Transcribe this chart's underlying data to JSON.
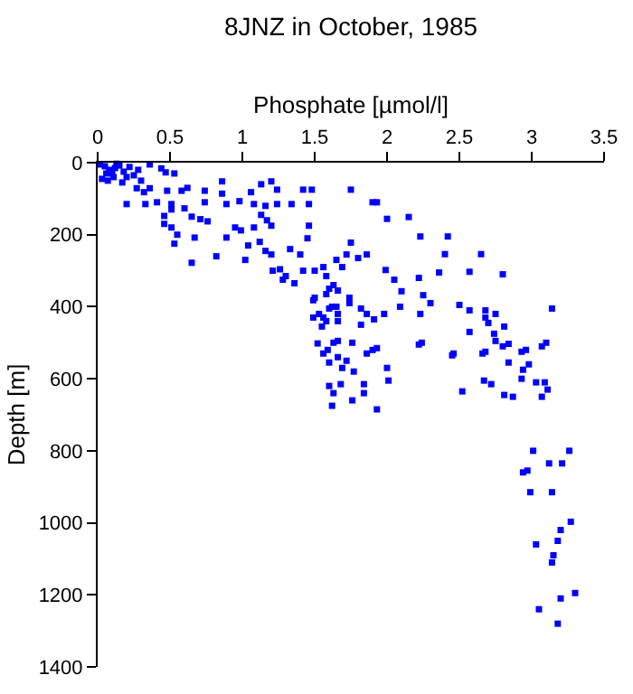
{
  "chart_data": {
    "type": "scatter",
    "title": "8JNZ in October, 1985",
    "xlabel": "Phosphate [µmol/l]",
    "ylabel": "Depth [m]",
    "xlim": [
      0,
      3.5
    ],
    "xticks": [
      0,
      0.5,
      1,
      1.5,
      2,
      2.5,
      3,
      3.5
    ],
    "ylim": [
      1400,
      0
    ],
    "yticks": [
      0,
      200,
      400,
      600,
      800,
      1000,
      1200,
      1400
    ],
    "grid": false,
    "marker": "square",
    "series": [
      {
        "color": "#0000ff",
        "x": [
          0.02,
          0.05,
          0.08,
          0.1,
          0.12,
          0.15,
          0.18,
          0.2,
          0.22,
          0.25,
          0.03,
          0.07,
          0.13,
          0.17,
          0.28,
          0.06,
          0.11,
          0.3,
          0.44,
          0.36,
          0.53,
          0.47,
          0.86,
          1.13,
          1.24,
          1.42,
          1.48,
          0.27,
          0.32,
          0.36,
          0.48,
          0.58,
          0.62,
          0.74,
          0.86,
          1.06,
          0.2,
          0.33,
          0.41,
          0.51,
          0.74,
          0.89,
          0.98,
          1.08,
          1.16,
          1.24,
          1.34,
          1.46,
          0.51,
          0.46,
          0.46,
          0.51,
          0.6,
          0.65,
          0.71,
          0.76,
          0.55,
          0.53,
          0.65,
          0.67,
          0.82,
          0.89,
          0.95,
          0.99,
          1.02,
          1.04,
          1.08,
          1.12,
          1.2,
          1.16,
          1.2,
          1.26,
          1.3,
          1.36,
          1.49,
          1.49,
          1.56,
          1.33,
          1.4,
          1.46,
          1.45,
          1.5,
          1.42,
          1.6,
          1.66,
          1.13,
          1.17,
          1.2,
          1.75,
          1.9,
          1.93,
          2.0,
          2.15,
          2.23,
          2.42,
          2.4,
          2.65,
          1.99,
          2.22,
          2.36,
          2.57,
          2.8,
          2.05,
          2.1,
          2.25,
          2.3,
          2.5,
          2.57,
          2.68,
          2.75,
          2.68,
          2.7,
          2.81,
          2.74,
          3.14,
          2.23,
          1.98,
          2.09,
          2.57,
          2.84,
          3.1,
          2.96,
          2.46,
          2.68,
          2.24,
          1.9,
          1.74,
          1.74,
          1.82,
          1.86,
          1.82,
          1.91,
          1.65,
          1.62,
          1.53,
          1.66,
          1.58,
          1.66,
          1.55,
          1.58,
          1.6,
          1.5,
          1.63,
          1.66,
          1.8,
          1.86,
          1.72,
          1.65,
          1.75,
          1.69,
          1.56,
          1.58,
          1.21,
          1.28,
          1.52,
          1.59,
          1.56,
          1.63,
          1.6,
          1.66,
          1.72,
          1.69,
          1.77,
          1.76,
          1.86,
          1.93,
          2.0,
          2.01,
          1.6,
          1.63,
          1.68,
          1.84,
          1.84,
          1.76,
          1.62,
          1.93,
          2.22,
          2.45,
          2.52,
          2.66,
          2.75,
          2.8,
          2.84,
          2.67,
          2.72,
          2.81,
          2.87,
          2.93,
          2.94,
          2.98,
          2.93,
          3.03,
          3.09,
          3.11,
          3.07,
          3.07,
          3.01,
          3.26,
          3.12,
          3.21,
          2.94,
          2.97,
          2.99,
          3.14,
          3.27,
          3.2,
          3.18,
          3.15,
          3.14,
          3.03,
          3.3,
          3.2,
          3.05,
          3.18
        ],
        "values": [
          5,
          10,
          20,
          30,
          15,
          8,
          25,
          40,
          12,
          35,
          45,
          50,
          3,
          55,
          20,
          30,
          40,
          50,
          16,
          5,
          30,
          27,
          52,
          60,
          75,
          75,
          75,
          71,
          82,
          71,
          78,
          78,
          70,
          78,
          86,
          82,
          115,
          115,
          110,
          115,
          110,
          115,
          107,
          115,
          120,
          115,
          115,
          115,
          130,
          148,
          170,
          180,
          127,
          150,
          157,
          163,
          200,
          225,
          278,
          208,
          260,
          208,
          180,
          188,
          270,
          230,
          180,
          220,
          175,
          245,
          255,
          296,
          315,
          335,
          382,
          430,
          430,
          240,
          255,
          175,
          210,
          300,
          300,
          405,
          440,
          145,
          160,
          52,
          75,
          110,
          110,
          156,
          151,
          205,
          205,
          254,
          254,
          298,
          320,
          305,
          303,
          310,
          325,
          357,
          368,
          390,
          395,
          410,
          410,
          420,
          430,
          445,
          455,
          475,
          405,
          420,
          420,
          400,
          470,
          503,
          500,
          520,
          530,
          525,
          500,
          520,
          375,
          390,
          405,
          420,
          450,
          435,
          400,
          400,
          420,
          420,
          440,
          495,
          455,
          365,
          350,
          375,
          340,
          355,
          265,
          255,
          255,
          270,
          222,
          290,
          290,
          315,
          300,
          325,
          502,
          520,
          530,
          500,
          555,
          540,
          550,
          570,
          580,
          500,
          530,
          515,
          570,
          605,
          620,
          640,
          615,
          615,
          640,
          660,
          675,
          685,
          505,
          535,
          635,
          530,
          495,
          510,
          555,
          605,
          615,
          645,
          650,
          525,
          575,
          560,
          600,
          610,
          610,
          630,
          650,
          510,
          800,
          800,
          835,
          835,
          860,
          855,
          915,
          915,
          997,
          1020,
          1050,
          1090,
          1110,
          1060,
          1195,
          1210,
          1240,
          1280
        ]
      }
    ]
  }
}
